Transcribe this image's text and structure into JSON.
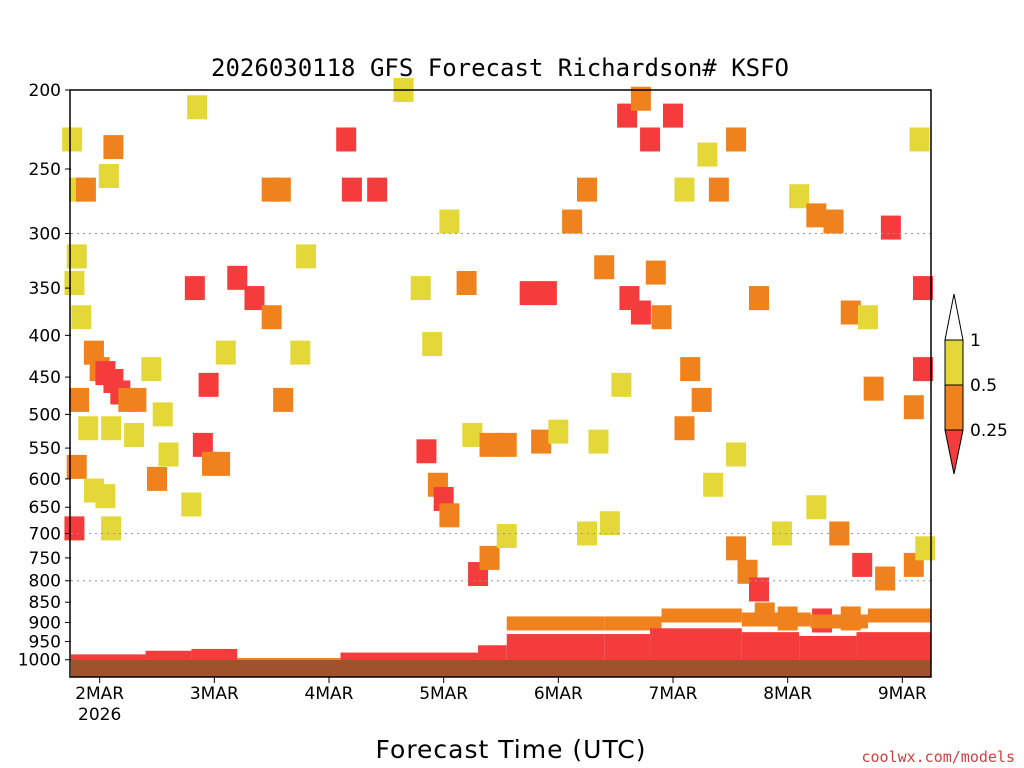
{
  "chart_data": {
    "type": "heatmap",
    "title": "2026030118 GFS Forecast Richardson# KSFO",
    "xlabel": "Forecast Time (UTC)",
    "y_axis_scale": "log-pressure (reversed, hPa)",
    "y_ticks": [
      200,
      250,
      300,
      350,
      400,
      450,
      500,
      550,
      600,
      650,
      700,
      750,
      800,
      850,
      900,
      950,
      1000
    ],
    "ylim": [
      200,
      1050
    ],
    "x_ticks": [
      {
        "day": 2,
        "label": "2MAR",
        "sub": "2026"
      },
      {
        "day": 3,
        "label": "3MAR",
        "sub": ""
      },
      {
        "day": 4,
        "label": "4MAR",
        "sub": ""
      },
      {
        "day": 5,
        "label": "5MAR",
        "sub": ""
      },
      {
        "day": 6,
        "label": "6MAR",
        "sub": ""
      },
      {
        "day": 7,
        "label": "7MAR",
        "sub": ""
      },
      {
        "day": 8,
        "label": "8MAR",
        "sub": ""
      },
      {
        "day": 9,
        "label": "9MAR",
        "sub": ""
      }
    ],
    "xlim_days": [
      1.75,
      9.25
    ],
    "grid": "dotted at 300, 700, 800 hPa",
    "colorbar": {
      "labels": [
        "1",
        "0.5",
        "0.25"
      ],
      "classes": [
        {
          "range": "< 0.25",
          "color": "#f53c3c"
        },
        {
          "range": "0.25 - 0.5",
          "color": "#f0821e"
        },
        {
          "range": "0.5 - 1",
          "color": "#e4d839"
        },
        {
          "range": "> 1",
          "color": "#ffffff"
        }
      ]
    },
    "ground_color": "#a0522d",
    "cells": [
      {
        "t": 1.76,
        "p": 230,
        "c": 2
      },
      {
        "t": 1.82,
        "p": 265,
        "c": 2
      },
      {
        "t": 1.88,
        "p": 265,
        "c": 1
      },
      {
        "t": 1.8,
        "p": 320,
        "c": 2
      },
      {
        "t": 1.78,
        "p": 345,
        "c": 2
      },
      {
        "t": 1.84,
        "p": 380,
        "c": 2
      },
      {
        "t": 1.95,
        "p": 420,
        "c": 1
      },
      {
        "t": 2.0,
        "p": 440,
        "c": 1
      },
      {
        "t": 2.05,
        "p": 445,
        "c": 0
      },
      {
        "t": 2.12,
        "p": 455,
        "c": 0
      },
      {
        "t": 2.18,
        "p": 470,
        "c": 0
      },
      {
        "t": 2.25,
        "p": 480,
        "c": 1
      },
      {
        "t": 2.32,
        "p": 480,
        "c": 1
      },
      {
        "t": 1.82,
        "p": 480,
        "c": 1
      },
      {
        "t": 1.9,
        "p": 520,
        "c": 2
      },
      {
        "t": 2.1,
        "p": 520,
        "c": 2
      },
      {
        "t": 2.3,
        "p": 530,
        "c": 2
      },
      {
        "t": 1.8,
        "p": 580,
        "c": 1
      },
      {
        "t": 1.95,
        "p": 620,
        "c": 2
      },
      {
        "t": 2.05,
        "p": 630,
        "c": 2
      },
      {
        "t": 1.78,
        "p": 690,
        "c": 0
      },
      {
        "t": 2.1,
        "p": 690,
        "c": 2
      },
      {
        "t": 2.12,
        "p": 235,
        "c": 1
      },
      {
        "t": 2.08,
        "p": 255,
        "c": 2
      },
      {
        "t": 2.85,
        "p": 210,
        "c": 2
      },
      {
        "t": 2.83,
        "p": 350,
        "c": 0
      },
      {
        "t": 2.95,
        "p": 460,
        "c": 0
      },
      {
        "t": 2.9,
        "p": 545,
        "c": 0
      },
      {
        "t": 2.98,
        "p": 575,
        "c": 1
      },
      {
        "t": 3.05,
        "p": 575,
        "c": 1
      },
      {
        "t": 2.8,
        "p": 645,
        "c": 2
      },
      {
        "t": 3.1,
        "p": 420,
        "c": 2
      },
      {
        "t": 3.2,
        "p": 340,
        "c": 0
      },
      {
        "t": 3.35,
        "p": 360,
        "c": 0
      },
      {
        "t": 3.5,
        "p": 265,
        "c": 1
      },
      {
        "t": 3.58,
        "p": 265,
        "c": 1
      },
      {
        "t": 3.5,
        "p": 380,
        "c": 1
      },
      {
        "t": 3.6,
        "p": 480,
        "c": 1
      },
      {
        "t": 4.15,
        "p": 230,
        "c": 0
      },
      {
        "t": 4.2,
        "p": 265,
        "c": 0
      },
      {
        "t": 4.42,
        "p": 265,
        "c": 0
      },
      {
        "t": 4.85,
        "p": 555,
        "c": 0
      },
      {
        "t": 4.95,
        "p": 610,
        "c": 1
      },
      {
        "t": 5.0,
        "p": 635,
        "c": 0
      },
      {
        "t": 5.05,
        "p": 665,
        "c": 1
      },
      {
        "t": 5.25,
        "p": 530,
        "c": 2
      },
      {
        "t": 5.4,
        "p": 545,
        "c": 1
      },
      {
        "t": 5.55,
        "p": 545,
        "c": 1
      },
      {
        "t": 5.3,
        "p": 785,
        "c": 0
      },
      {
        "t": 5.4,
        "p": 750,
        "c": 1
      },
      {
        "t": 5.55,
        "p": 705,
        "c": 2
      },
      {
        "t": 5.75,
        "p": 355,
        "c": 0
      },
      {
        "t": 5.9,
        "p": 355,
        "c": 0
      },
      {
        "t": 5.85,
        "p": 540,
        "c": 1
      },
      {
        "t": 6.0,
        "p": 525,
        "c": 2
      },
      {
        "t": 6.6,
        "p": 215,
        "c": 0
      },
      {
        "t": 6.72,
        "p": 205,
        "c": 1
      },
      {
        "t": 6.62,
        "p": 360,
        "c": 0
      },
      {
        "t": 6.72,
        "p": 375,
        "c": 0
      },
      {
        "t": 6.9,
        "p": 380,
        "c": 1
      },
      {
        "t": 6.85,
        "p": 335,
        "c": 1
      },
      {
        "t": 6.8,
        "p": 230,
        "c": 0
      },
      {
        "t": 7.0,
        "p": 215,
        "c": 0
      },
      {
        "t": 7.1,
        "p": 265,
        "c": 2
      },
      {
        "t": 7.3,
        "p": 240,
        "c": 2
      },
      {
        "t": 7.4,
        "p": 265,
        "c": 1
      },
      {
        "t": 7.55,
        "p": 230,
        "c": 1
      },
      {
        "t": 7.15,
        "p": 440,
        "c": 1
      },
      {
        "t": 7.1,
        "p": 520,
        "c": 1
      },
      {
        "t": 7.25,
        "p": 480,
        "c": 1
      },
      {
        "t": 7.35,
        "p": 610,
        "c": 2
      },
      {
        "t": 7.55,
        "p": 560,
        "c": 2
      },
      {
        "t": 7.75,
        "p": 360,
        "c": 1
      },
      {
        "t": 8.1,
        "p": 270,
        "c": 2
      },
      {
        "t": 8.25,
        "p": 285,
        "c": 1
      },
      {
        "t": 8.4,
        "p": 290,
        "c": 1
      },
      {
        "t": 8.55,
        "p": 375,
        "c": 1
      },
      {
        "t": 8.7,
        "p": 380,
        "c": 2
      },
      {
        "t": 8.75,
        "p": 465,
        "c": 1
      },
      {
        "t": 8.9,
        "p": 295,
        "c": 0
      },
      {
        "t": 9.15,
        "p": 230,
        "c": 2
      },
      {
        "t": 9.18,
        "p": 350,
        "c": 0
      },
      {
        "t": 9.18,
        "p": 440,
        "c": 0
      },
      {
        "t": 9.1,
        "p": 490,
        "c": 1
      },
      {
        "t": 8.25,
        "p": 650,
        "c": 2
      },
      {
        "t": 8.45,
        "p": 700,
        "c": 1
      },
      {
        "t": 8.65,
        "p": 765,
        "c": 0
      },
      {
        "t": 7.65,
        "p": 780,
        "c": 1
      },
      {
        "t": 7.75,
        "p": 820,
        "c": 0
      },
      {
        "t": 7.8,
        "p": 880,
        "c": 1
      },
      {
        "t": 8.0,
        "p": 890,
        "c": 1
      },
      {
        "t": 8.3,
        "p": 895,
        "c": 0
      },
      {
        "t": 8.55,
        "p": 890,
        "c": 1
      },
      {
        "t": 7.55,
        "p": 730,
        "c": 1
      },
      {
        "t": 7.95,
        "p": 700,
        "c": 2
      },
      {
        "t": 8.85,
        "p": 795,
        "c": 1
      },
      {
        "t": 9.1,
        "p": 765,
        "c": 1
      },
      {
        "t": 9.2,
        "p": 730,
        "c": 2
      },
      {
        "t": 6.25,
        "p": 700,
        "c": 2
      },
      {
        "t": 6.45,
        "p": 680,
        "c": 2
      },
      {
        "t": 6.35,
        "p": 540,
        "c": 2
      },
      {
        "t": 6.55,
        "p": 460,
        "c": 2
      },
      {
        "t": 6.4,
        "p": 330,
        "c": 1
      },
      {
        "t": 6.25,
        "p": 265,
        "c": 1
      },
      {
        "t": 6.12,
        "p": 290,
        "c": 1
      },
      {
        "t": 4.8,
        "p": 350,
        "c": 2
      },
      {
        "t": 4.9,
        "p": 410,
        "c": 2
      },
      {
        "t": 5.05,
        "p": 290,
        "c": 2
      },
      {
        "t": 5.2,
        "p": 345,
        "c": 1
      },
      {
        "t": 4.65,
        "p": 200,
        "c": 2
      },
      {
        "t": 3.8,
        "p": 320,
        "c": 2
      },
      {
        "t": 3.75,
        "p": 420,
        "c": 2
      },
      {
        "t": 2.45,
        "p": 440,
        "c": 2
      },
      {
        "t": 2.55,
        "p": 500,
        "c": 2
      },
      {
        "t": 2.6,
        "p": 560,
        "c": 2
      },
      {
        "t": 2.5,
        "p": 600,
        "c": 1
      }
    ],
    "surface_layers": [
      {
        "t0": 1.75,
        "t1": 2.4,
        "p": 985,
        "c": 0
      },
      {
        "t0": 2.4,
        "t1": 2.8,
        "p": 975,
        "c": 0
      },
      {
        "t0": 2.8,
        "t1": 3.2,
        "p": 970,
        "c": 0
      },
      {
        "t0": 3.2,
        "t1": 4.1,
        "p": 995,
        "c": 1
      },
      {
        "t0": 4.1,
        "t1": 5.3,
        "p": 980,
        "c": 0
      },
      {
        "t0": 5.3,
        "t1": 5.55,
        "p": 960,
        "c": 0
      },
      {
        "t0": 5.55,
        "t1": 6.4,
        "p": 930,
        "c": 0
      },
      {
        "t0": 6.4,
        "t1": 6.8,
        "p": 930,
        "c": 0
      },
      {
        "t0": 6.8,
        "t1": 7.6,
        "p": 915,
        "c": 0
      },
      {
        "t0": 7.6,
        "t1": 8.1,
        "p": 925,
        "c": 0
      },
      {
        "t0": 8.1,
        "t1": 8.6,
        "p": 935,
        "c": 0
      },
      {
        "t0": 8.6,
        "t1": 9.25,
        "p": 925,
        "c": 0
      }
    ],
    "upper_surface_layers": [
      {
        "t0": 5.55,
        "t1": 6.4,
        "p": 900,
        "c": 1
      },
      {
        "t0": 6.4,
        "t1": 6.9,
        "p": 900,
        "c": 1
      },
      {
        "t0": 6.9,
        "t1": 7.6,
        "p": 880,
        "c": 1
      },
      {
        "t0": 7.6,
        "t1": 8.2,
        "p": 890,
        "c": 1
      },
      {
        "t0": 8.2,
        "t1": 8.7,
        "p": 895,
        "c": 1
      },
      {
        "t0": 8.7,
        "t1": 9.25,
        "p": 880,
        "c": 1
      }
    ]
  },
  "footer": {
    "credit": "coolwx.com/models"
  }
}
